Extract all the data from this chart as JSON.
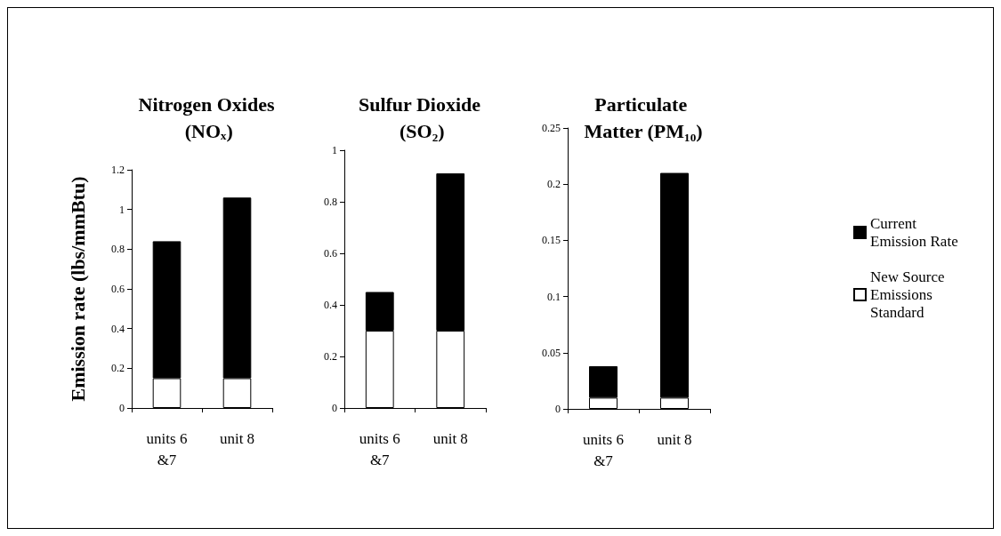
{
  "chart_data": [
    {
      "type": "bar",
      "title": "Nitrogen Oxides (NOₓ)",
      "ylabel": "Emission rate (lbs/mmBtu)",
      "categories": [
        "units 6&7",
        "unit 8"
      ],
      "stacked": true,
      "series": [
        {
          "color": "#ffffff",
          "values": [
            0.15,
            0.15
          ]
        },
        {
          "color": "#000000",
          "values": [
            0.69,
            0.91
          ]
        }
      ],
      "ylim": [
        0,
        1.2
      ],
      "yticks": [
        0,
        0.2,
        0.4,
        0.6,
        0.8,
        1,
        1.2
      ]
    },
    {
      "type": "bar",
      "title": "Sulfur Dioxide (SO₂)",
      "categories": [
        "units 6&7",
        "unit 8"
      ],
      "stacked": true,
      "series": [
        {
          "color": "#ffffff",
          "values": [
            0.3,
            0.3
          ]
        },
        {
          "color": "#000000",
          "values": [
            0.15,
            0.61
          ]
        }
      ],
      "ylim": [
        0,
        1
      ],
      "yticks": [
        0,
        0.2,
        0.4,
        0.6,
        0.8,
        1
      ]
    },
    {
      "type": "bar",
      "title": "Particulate Matter (PM₁₀)",
      "categories": [
        "units 6&7",
        "unit 8"
      ],
      "stacked": true,
      "series": [
        {
          "name": "New Source Emissions Standard",
          "color": "#ffffff",
          "values": [
            0.01,
            0.01
          ]
        },
        {
          "name": "Current Emission Rate",
          "color": "#000000",
          "values": [
            0.028,
            0.2
          ]
        }
      ],
      "ylim": [
        0,
        0.25
      ],
      "yticks": [
        0,
        0.05,
        0.1,
        0.15,
        0.2,
        0.25
      ],
      "legend": "right"
    }
  ]
}
